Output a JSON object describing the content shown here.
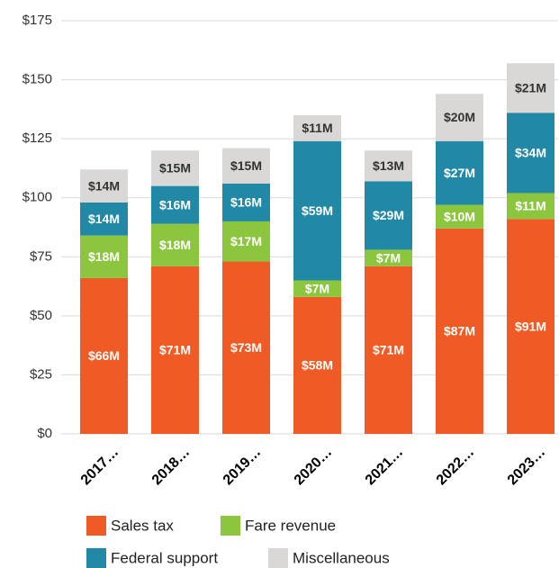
{
  "chart_data": {
    "type": "stacked_bar",
    "categories": [
      "2017…",
      "2018…",
      "2019…",
      "2020…",
      "2021…",
      "2022…",
      "2023…"
    ],
    "series": [
      {
        "name": "Sales tax",
        "color": "#f05a24",
        "values": [
          66,
          71,
          73,
          58,
          71,
          87,
          91
        ],
        "value_labels": [
          "$66M",
          "$71M",
          "$73M",
          "$58M",
          "$71M",
          "$87M",
          "$91M"
        ]
      },
      {
        "name": "Fare revenue",
        "color": "#8cc63f",
        "values": [
          18,
          18,
          17,
          7,
          7,
          10,
          11
        ],
        "value_labels": [
          "$18M",
          "$18M",
          "$17M",
          "$7M",
          "$7M",
          "$10M",
          "$11M"
        ]
      },
      {
        "name": "Federal support",
        "color": "#2189a6",
        "values": [
          14,
          16,
          16,
          59,
          29,
          27,
          34
        ],
        "value_labels": [
          "$14M",
          "$16M",
          "$16M",
          "$59M",
          "$29M",
          "$27M",
          "$34M"
        ]
      },
      {
        "name": "Miscellaneous",
        "color": "#d9d8d6",
        "values": [
          14,
          15,
          15,
          11,
          13,
          20,
          21
        ],
        "value_labels": [
          "$14M",
          "$15M",
          "$15M",
          "$11M",
          "$13M",
          "$20M",
          "$21M"
        ]
      }
    ],
    "ylim": [
      0,
      175
    ],
    "yticks": [
      {
        "value": 0,
        "label": "$0"
      },
      {
        "value": 25,
        "label": "$25"
      },
      {
        "value": 50,
        "label": "$50"
      },
      {
        "value": 75,
        "label": "$75"
      },
      {
        "value": 100,
        "label": "$100"
      },
      {
        "value": 125,
        "label": "$125"
      },
      {
        "value": 150,
        "label": "$150"
      },
      {
        "value": 175,
        "label": "$175"
      }
    ],
    "grid": true,
    "legend": "bottom"
  }
}
